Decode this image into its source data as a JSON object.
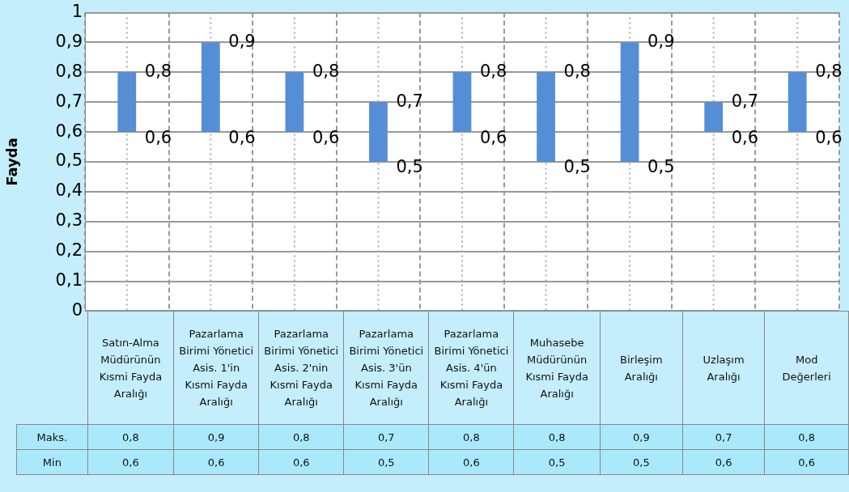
{
  "chart_data": {
    "type": "bar",
    "categories": [
      "Satın-Alma Müdürünün Kısmi Fayda Aralığı",
      "Pazarlama Birimi Yönetici Asis. 1'in Kısmi Fayda Aralığı",
      "Pazarlama Birimi Yönetici Asis. 2'nin Kısmi Fayda Aralığı",
      "Pazarlama Birimi Yönetici Asis. 3'ün Kısmi Fayda Aralığı",
      "Pazarlama Birimi Yönetici Asis. 4'ün Kısmi Fayda Aralığı",
      "Muhasebe Müdürünün Kısmi Fayda Aralığı",
      "Birleşim Aralığı",
      "Uzlaşım Aralığı",
      "Mod Değerleri"
    ],
    "base": [
      0.6,
      0.6,
      0.6,
      0.5,
      0.6,
      0.5,
      0.5,
      0.6,
      0.6
    ],
    "values": [
      0.2,
      0.3,
      0.2,
      0.2,
      0.2,
      0.3,
      0.4,
      0.1,
      0.2
    ],
    "color": "#558ed5",
    "ylabel": "Fayda",
    "ylim": [
      0,
      1
    ],
    "yticks": [
      0,
      {
        "value": 0.1,
        "label": "0,1"
      },
      {
        "value": 0.2,
        "label": "0,2"
      },
      {
        "value": 0.3,
        "label": "0,3"
      },
      {
        "value": 0.4,
        "label": "0,4"
      },
      {
        "value": 0.5,
        "label": "0,5"
      },
      {
        "value": 0.6,
        "label": "0,6"
      },
      {
        "value": 0.7,
        "label": "0,7"
      },
      {
        "value": 0.8,
        "label": "0,8"
      },
      {
        "value": 0.9,
        "label": "0,9"
      },
      1
    ],
    "grid": true,
    "annotations": [
      "Maks.",
      "Min",
      {
        "text": "0,8",
        "x": "Satın-Alma Müdürünün Kısmi Fayda Aralığı",
        "y": 0.8
      },
      {
        "text": "0,6",
        "x": "Satın-Alma Müdürünün Kısmi Fayda Aralığı",
        "y": 0.6
      },
      {
        "text": "0,9",
        "x": "Pazarlama Birimi Yönetici Asis. 1'in Kısmi Fayda Aralığı",
        "y": 0.9
      },
      {
        "text": "0,6",
        "x": "Pazarlama Birimi Yönetici Asis. 1'in Kısmi Fayda Aralığı",
        "y": 0.6
      },
      {
        "text": "0,8",
        "x": "Pazarlama Birimi Yönetici Asis. 2'nin Kısmi Fayda Aralığı",
        "y": 0.8
      },
      {
        "text": "0,6",
        "x": "Pazarlama Birimi Yönetici Asis. 2'nin Kısmi Fayda Aralığı",
        "y": 0.6
      },
      {
        "text": "0,7",
        "x": "Pazarlama Birimi Yönetici Asis. 3'ün Kısmi Fayda Aralığı",
        "y": 0.7
      },
      {
        "text": "0,5",
        "x": "Pazarlama Birimi Yönetici Asis. 3'ün Kısmi Fayda Aralığı",
        "y": 0.5
      },
      {
        "text": "0,8",
        "x": "Pazarlama Birimi Yönetici Asis. 4'ün Kısmi Fayda Aralığı",
        "y": 0.8
      },
      {
        "text": "0,6",
        "x": "Pazarlama Birimi Yönetici Asis. 4'ün Kısmi Fayda Aralığı",
        "y": 0.6
      },
      {
        "text": "0,8",
        "x": "Muhasebe Müdürünün Kısmi Fayda Aralığı",
        "y": 0.8
      },
      {
        "text": "0,5",
        "x": "Muhasebe Müdürünün Kısmi Fayda Aralığı",
        "y": 0.5
      },
      {
        "text": "0,9",
        "x": "Birleşim Aralığı",
        "y": 0.9
      },
      {
        "text": "0,5",
        "x": "Birleşim Aralığı",
        "y": 0.5
      },
      {
        "text": "0,7",
        "x": "Uzlaşım Aralığı",
        "y": 0.7
      },
      {
        "text": "0,6",
        "x": "Uzlaşım Aralığı",
        "y": 0.6
      },
      {
        "text": "0,8",
        "x": "Mod Değerleri",
        "y": 0.8
      },
      {
        "text": "0,6",
        "x": "Mod Değerleri",
        "y": 0.6
      }
    ]
  }
}
